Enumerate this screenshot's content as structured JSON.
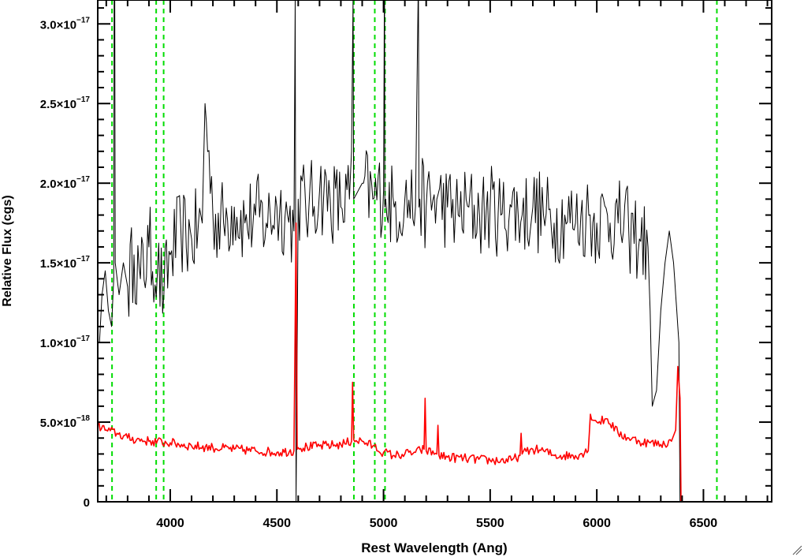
{
  "chart_data": {
    "type": "line",
    "xlabel": "Rest Wavelength (Ang)",
    "ylabel": "Relative Flux (cgs)",
    "xlim": [
      3660,
      6820
    ],
    "ylim": [
      0,
      3.15e-17
    ],
    "x_ticks": [
      {
        "value": 4000,
        "label": "4000"
      },
      {
        "value": 4500,
        "label": "4500"
      },
      {
        "value": 5000,
        "label": "5000"
      },
      {
        "value": 5500,
        "label": "5500"
      },
      {
        "value": 6000,
        "label": "6000"
      },
      {
        "value": 6500,
        "label": "6500"
      }
    ],
    "y_ticks": [
      {
        "value": 0,
        "mantissa": "0",
        "exponent": ""
      },
      {
        "value": 5e-18,
        "mantissa": "5.0×10",
        "exponent": "−18"
      },
      {
        "value": 1e-17,
        "mantissa": "1.0×10",
        "exponent": "−17"
      },
      {
        "value": 1.5e-17,
        "mantissa": "1.5×10",
        "exponent": "−17"
      },
      {
        "value": 2e-17,
        "mantissa": "2.0×10",
        "exponent": "−17"
      },
      {
        "value": 2.5e-17,
        "mantissa": "2.5×10",
        "exponent": "−17"
      },
      {
        "value": 3e-17,
        "mantissa": "3.0×10",
        "exponent": "−17"
      }
    ],
    "series": [
      {
        "color": "#000000",
        "x": [
          3668,
          3680,
          3695,
          3710,
          3725,
          3735,
          3737,
          3740,
          3742,
          3760,
          3780,
          3800,
          3830,
          3860,
          3900,
          3940,
          3970,
          4000,
          4050,
          4100,
          4150,
          4163,
          4200,
          4250,
          4300,
          4350,
          4400,
          4450,
          4500,
          4550,
          4580,
          4586,
          4590,
          4600,
          4650,
          4700,
          4750,
          4800,
          4840,
          4850,
          4857,
          4860,
          4880,
          4900,
          4950,
          5000,
          5004,
          5005,
          5006,
          5010,
          5050,
          5100,
          5150,
          5162,
          5164,
          5166,
          5170,
          5200,
          5250,
          5300,
          5350,
          5400,
          5450,
          5500,
          5550,
          5600,
          5650,
          5700,
          5750,
          5800,
          5850,
          5900,
          5950,
          6000,
          6050,
          6100,
          6150,
          6200,
          6240,
          6250,
          6260,
          6280,
          6300,
          6320,
          6340,
          6360,
          6375,
          6385,
          6390
        ],
        "values": [
          1e-17,
          1.3e-17,
          1.45e-17,
          1.2e-17,
          1.1e-17,
          1.4e-17,
          3.2e-17,
          3.2e-17,
          1.5e-17,
          1.3e-17,
          1.5e-17,
          1.35e-17,
          1.55e-17,
          1.4e-17,
          1.6e-17,
          1.45e-17,
          1.3e-17,
          1.55e-17,
          1.7e-17,
          1.65e-17,
          1.75e-17,
          2.5e-17,
          1.8e-17,
          1.75e-17,
          1.85e-17,
          1.75e-17,
          1.8e-17,
          1.75e-17,
          1.85e-17,
          1.8e-17,
          1.7e-17,
          3.2e-17,
          0,
          1.9e-17,
          1.85e-17,
          1.95e-17,
          1.9e-17,
          1.85e-17,
          1.9e-17,
          2.2e-17,
          3.2e-17,
          1.9e-17,
          1.95e-17,
          2e-17,
          1.9e-17,
          1.95e-17,
          3.2e-17,
          3.2e-17,
          1.85e-17,
          1.9e-17,
          1.85e-17,
          1.9e-17,
          1.85e-17,
          3.2e-17,
          3.2e-17,
          1.85e-17,
          1.9e-17,
          1.85e-17,
          1.9e-17,
          1.85e-17,
          1.8e-17,
          1.85e-17,
          1.8e-17,
          1.85e-17,
          1.8e-17,
          1.85e-17,
          1.8e-17,
          1.85e-17,
          1.8e-17,
          1.75e-17,
          1.8e-17,
          1.75e-17,
          1.8e-17,
          1.75e-17,
          1.8e-17,
          1.75e-17,
          1.7e-17,
          1.65e-17,
          1.6e-17,
          1.2e-17,
          6e-18,
          7e-18,
          1.2e-17,
          1.5e-17,
          1.7e-17,
          1.5e-17,
          1.2e-17,
          1e-17,
          0
        ],
        "noise": 2.8e-18
      },
      {
        "color": "#ff0000",
        "x": [
          3660,
          3700,
          3750,
          3800,
          3900,
          4000,
          4100,
          4200,
          4300,
          4400,
          4500,
          4580,
          4590,
          4595,
          4600,
          4700,
          4800,
          4850,
          4855,
          4860,
          4900,
          4950,
          5000,
          5050,
          5100,
          5150,
          5190,
          5195,
          5200,
          5250,
          5255,
          5260,
          5300,
          5400,
          5500,
          5600,
          5640,
          5645,
          5650,
          5700,
          5750,
          5800,
          5900,
          5960,
          5970,
          6000,
          6050,
          6100,
          6150,
          6200,
          6250,
          6300,
          6350,
          6370,
          6380,
          6390,
          6395,
          6400,
          6820
        ],
        "values": [
          4.8e-18,
          4.5e-18,
          4.3e-18,
          4e-18,
          3.8e-18,
          3.7e-18,
          3.5e-18,
          3.4e-18,
          3.3e-18,
          3.2e-18,
          3.1e-18,
          3.2e-18,
          1.75e-17,
          3.3e-18,
          3.4e-18,
          3.5e-18,
          3.6e-18,
          3.8e-18,
          7.5e-18,
          3.9e-18,
          3.8e-18,
          3.5e-18,
          3.1e-18,
          2.9e-18,
          3e-18,
          3.1e-18,
          3.3e-18,
          6.5e-18,
          3.2e-18,
          3e-18,
          4.8e-18,
          2.9e-18,
          2.8e-18,
          2.7e-18,
          2.6e-18,
          2.6e-18,
          2.9e-18,
          4.3e-18,
          3e-18,
          3.3e-18,
          3.2e-18,
          2.9e-18,
          2.9e-18,
          3.2e-18,
          5.5e-18,
          5e-18,
          5.2e-18,
          4.3e-18,
          4e-18,
          3.8e-18,
          3.7e-18,
          3.6e-18,
          3.8e-18,
          4.5e-18,
          8.5e-18,
          6.5e-18,
          0,
          0,
          0
        ],
        "noise": 3e-19
      }
    ],
    "reference_lines": [
      {
        "x": 3727,
        "color": "#00dd00"
      },
      {
        "x": 3934,
        "color": "#00dd00"
      },
      {
        "x": 3969,
        "color": "#00dd00"
      },
      {
        "x": 4861,
        "color": "#00dd00"
      },
      {
        "x": 4959,
        "color": "#00dd00"
      },
      {
        "x": 5007,
        "color": "#00dd00"
      },
      {
        "x": 6563,
        "color": "#00dd00"
      }
    ],
    "grid": false,
    "legend": "none"
  }
}
